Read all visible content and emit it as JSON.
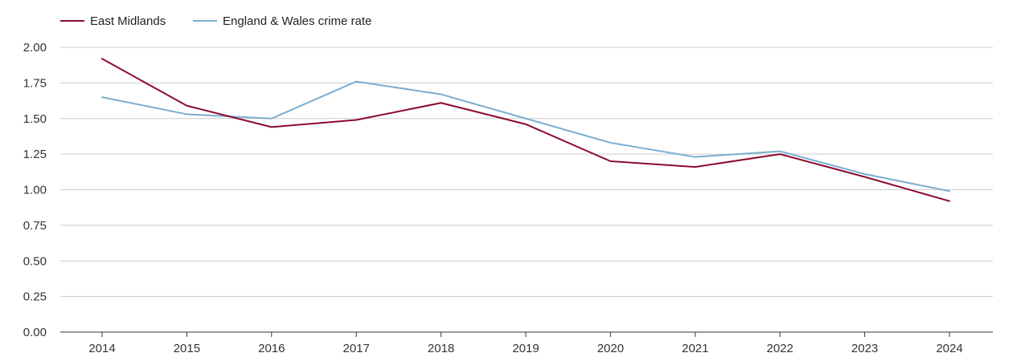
{
  "chart_data": {
    "type": "line",
    "title": "",
    "xlabel": "",
    "ylabel": "",
    "categories": [
      "2014",
      "2015",
      "2016",
      "2017",
      "2018",
      "2019",
      "2020",
      "2021",
      "2022",
      "2023",
      "2024"
    ],
    "series": [
      {
        "name": "East Midlands",
        "color": "#8b0a2e",
        "values": [
          1.92,
          1.59,
          1.44,
          1.49,
          1.61,
          1.46,
          1.2,
          1.16,
          1.25,
          1.09,
          0.92
        ]
      },
      {
        "name": "England & Wales crime rate",
        "color": "#7aaed1",
        "values": [
          1.65,
          1.53,
          1.5,
          1.76,
          1.67,
          1.5,
          1.33,
          1.23,
          1.27,
          1.11,
          0.99
        ]
      }
    ],
    "yticks": [
      "0.00",
      "0.25",
      "0.50",
      "0.75",
      "1.00",
      "1.25",
      "1.50",
      "1.75",
      "2.00"
    ],
    "ylim": [
      0,
      2
    ],
    "grid": true,
    "legend_position": "top-left"
  }
}
